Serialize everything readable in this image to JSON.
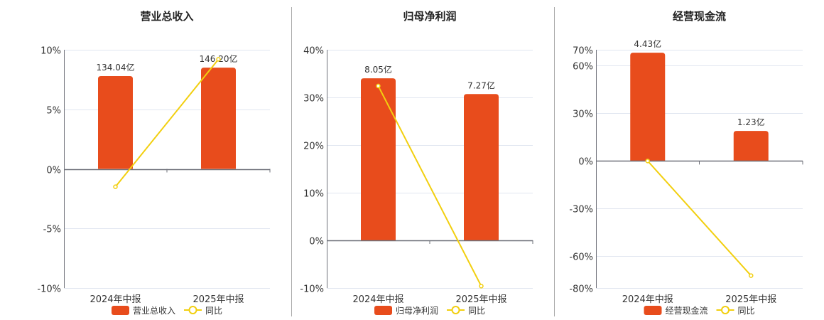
{
  "colors": {
    "bar": "#e84c1c",
    "line": "#f2cf0f",
    "grid": "#e1e6f0",
    "axis": "#6e7079",
    "divider": "#aaaaaa"
  },
  "chart_data": [
    {
      "type": "bar+line",
      "title": "营业总收入",
      "categories": [
        "2024年中报",
        "2025年中报"
      ],
      "bar_series": {
        "name": "营业总收入",
        "values": [
          134.04,
          146.2
        ],
        "labels": [
          "134.04亿",
          "146.20亿"
        ],
        "unit": "亿",
        "range": [
          0,
          172
        ]
      },
      "line_series": {
        "name": "同比",
        "values": [
          -1.5,
          9.2
        ],
        "unit": "%"
      },
      "yticks": [
        10,
        5,
        0,
        -5,
        -10
      ],
      "ytick_labels": [
        "10%",
        "5%",
        "0%",
        "-5%",
        "-10%"
      ],
      "ylim": [
        -10,
        10
      ],
      "legend": "bottom"
    },
    {
      "type": "bar+line",
      "title": "归母净利润",
      "categories": [
        "2024年中报",
        "2025年中报"
      ],
      "bar_series": {
        "name": "归母净利润",
        "values": [
          8.05,
          7.27
        ],
        "labels": [
          "8.05亿",
          "7.27亿"
        ],
        "unit": "亿",
        "range": [
          0,
          9.47
        ]
      },
      "line_series": {
        "name": "同比",
        "values": [
          32.4,
          -9.6
        ],
        "unit": "%"
      },
      "yticks": [
        40,
        30,
        20,
        10,
        0,
        -10
      ],
      "ytick_labels": [
        "40%",
        "30%",
        "20%",
        "10%",
        "0%",
        "-10%"
      ],
      "ylim": [
        -10,
        40
      ],
      "legend": "bottom"
    },
    {
      "type": "bar+line",
      "title": "经营现金流",
      "categories": [
        "2024年中报",
        "2025年中报"
      ],
      "bar_series": {
        "name": "经营现金流",
        "values": [
          4.43,
          1.23
        ],
        "labels": [
          "4.43亿",
          "1.23亿"
        ],
        "unit": "亿",
        "range": [
          0,
          4.55
        ]
      },
      "line_series": {
        "name": "同比",
        "values": [
          0,
          -72.2
        ],
        "unit": "%"
      },
      "yticks": [
        70,
        60,
        30,
        0,
        -30,
        -60,
        -80
      ],
      "ytick_labels": [
        "70%",
        "60%",
        "30%",
        "0%",
        "-30%",
        "-60%",
        "-80%"
      ],
      "ylim": [
        -80,
        70
      ],
      "legend": "bottom"
    }
  ]
}
